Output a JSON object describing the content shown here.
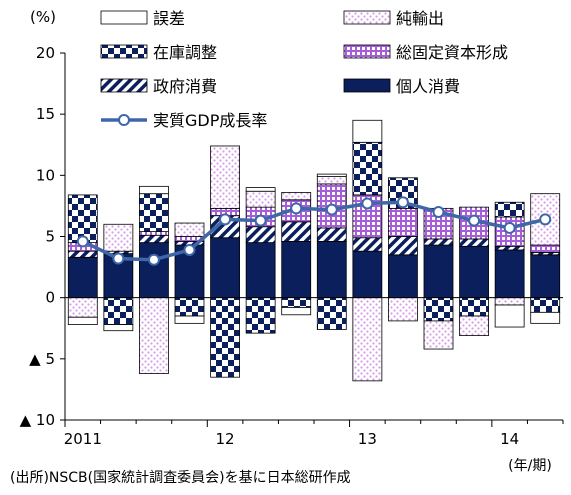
{
  "chart_data": {
    "type": "bar",
    "stacked": true,
    "with_line_overlay": true,
    "y_unit": "(%)",
    "x_unit": "(年/期)",
    "source_note": "(出所)NSCB(国家統計調査委員会)を基に日本総研作成",
    "ylim": [
      -10,
      20
    ],
    "y_ticks": [
      {
        "value": 20,
        "label": "20"
      },
      {
        "value": 15,
        "label": "15"
      },
      {
        "value": 10,
        "label": "10"
      },
      {
        "value": 5,
        "label": "5"
      },
      {
        "value": 0,
        "label": "0"
      },
      {
        "value": -5,
        "label": "▲ 5"
      },
      {
        "value": -10,
        "label": "▲ 10"
      }
    ],
    "x_tick_labels": [
      {
        "index": 0,
        "label": "2011"
      },
      {
        "index": 4,
        "label": "12"
      },
      {
        "index": 8,
        "label": "13"
      },
      {
        "index": 12,
        "label": "14"
      }
    ],
    "categories": [
      "2011Q1",
      "2011Q2",
      "2011Q3",
      "2011Q4",
      "2012Q1",
      "2012Q2",
      "2012Q3",
      "2012Q4",
      "2013Q1",
      "2013Q2",
      "2013Q3",
      "2013Q4",
      "2014Q1",
      "2014Q2"
    ],
    "grid": false,
    "legend_placement": "top",
    "series": [
      {
        "key": "consumption",
        "name": "個人消費",
        "pattern": "solid-navy",
        "values": [
          3.3,
          3.6,
          4.5,
          4.3,
          4.9,
          4.5,
          4.6,
          4.6,
          3.8,
          3.5,
          4.3,
          4.2,
          3.9,
          3.5
        ]
      },
      {
        "key": "government",
        "name": "政府消費",
        "pattern": "diag-stripes",
        "values": [
          0.5,
          0.2,
          0.6,
          0.3,
          1.8,
          1.3,
          1.6,
          1.1,
          1.1,
          1.5,
          0.5,
          0.6,
          0.3,
          0.2
        ]
      },
      {
        "key": "fixed_capital",
        "name": "総固定資本形成",
        "pattern": "grid-violet",
        "values": [
          0.7,
          0.0,
          0.3,
          0.4,
          0.6,
          1.6,
          1.8,
          3.6,
          3.5,
          2.3,
          2.5,
          2.6,
          2.4,
          0.6
        ]
      },
      {
        "key": "inventory",
        "name": "在庫調整",
        "pattern": "checker-navy",
        "values": [
          3.9,
          -2.2,
          3.1,
          -1.5,
          -6.5,
          -2.9,
          -0.8,
          -2.6,
          4.3,
          2.5,
          -1.9,
          -1.5,
          1.2,
          -1.2
        ]
      },
      {
        "key": "net_exports",
        "name": "純輸出",
        "pattern": "dots-pink",
        "values": [
          -1.6,
          2.2,
          -6.2,
          1.1,
          5.1,
          1.3,
          0.6,
          0.6,
          -6.8,
          -1.9,
          -2.3,
          -1.6,
          -0.6,
          4.2
        ]
      },
      {
        "key": "error",
        "name": "誤差",
        "pattern": "white",
        "values": [
          -0.6,
          -0.5,
          0.6,
          -0.6,
          0.0,
          0.3,
          -0.6,
          0.2,
          1.8,
          0.0,
          0.0,
          0.0,
          -1.8,
          -0.9
        ]
      }
    ],
    "line": {
      "name": "実質GDP成長率",
      "values": [
        4.6,
        3.2,
        3.1,
        3.9,
        6.4,
        6.3,
        7.3,
        7.2,
        7.7,
        7.8,
        7.0,
        6.3,
        5.7,
        6.4
      ]
    },
    "legend": {
      "left": [
        "誤差",
        "在庫調整",
        "政府消費",
        "実質GDP成長率"
      ],
      "right": [
        "純輸出",
        "総固定資本形成",
        "個人消費"
      ]
    },
    "colors": {
      "navy": "#0a1f5c",
      "violet": "#a55ed8",
      "pink": "#d69de6",
      "line": "#3f67a8",
      "axis": "#000000"
    }
  }
}
